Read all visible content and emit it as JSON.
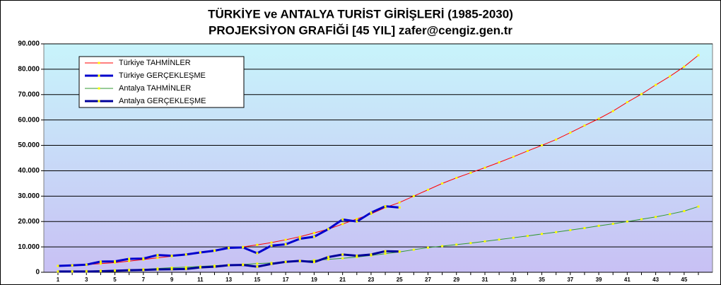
{
  "chart_data": {
    "type": "line",
    "title": "TÜRKİYE ve ANTALYA TURİST GİRİŞLERİ (1985-2030)",
    "subtitle": "PROJEKSİYON GRAFİĞİ [45 YIL]  zafer@cengiz.gen.tr",
    "categories": [
      1,
      null,
      3,
      null,
      5,
      null,
      7,
      null,
      9,
      null,
      11,
      null,
      13,
      null,
      15,
      null,
      17,
      null,
      19,
      null,
      21,
      null,
      23,
      null,
      25,
      null,
      27,
      null,
      29,
      null,
      31,
      null,
      33,
      null,
      35,
      null,
      37,
      null,
      39,
      null,
      41,
      null,
      43,
      null,
      45,
      null
    ],
    "ylim": [
      0,
      90000
    ],
    "yticks": [
      0,
      {
        "value": 10000,
        "label": "10.000"
      },
      {
        "value": 20000,
        "label": "20.000"
      },
      {
        "value": 30000,
        "label": "30.000"
      },
      {
        "value": 40000,
        "label": "40.000"
      },
      {
        "value": 50000,
        "label": "50.000"
      },
      {
        "value": 60000,
        "label": "60.000"
      },
      {
        "value": 70000,
        "label": "70.000"
      },
      {
        "value": 80000,
        "label": "80.000"
      },
      {
        "value": 90000,
        "label": "90.000"
      }
    ],
    "grid": true,
    "legend": "top-left",
    "series": [
      {
        "name": "Türkiye TAHMİNLER",
        "color": "#ff0000",
        "width": 1,
        "values": [
          2500,
          2700,
          3000,
          3400,
          3800,
          4400,
          5000,
          5700,
          6300,
          7000,
          7800,
          8600,
          9500,
          10000,
          10800,
          11700,
          12800,
          14000,
          15500,
          17000,
          19000,
          21000,
          23000,
          25500,
          27500,
          30000,
          32500,
          35000,
          37200,
          39200,
          41200,
          43300,
          45500,
          47800,
          50000,
          52300,
          55000,
          57800,
          60500,
          63500,
          67000,
          70200,
          73800,
          77200,
          81000,
          85500
        ]
      },
      {
        "name": "Türkiye GERÇEKLEŞME",
        "color": "#0000cc",
        "width": 3,
        "values": [
          2500,
          2700,
          3000,
          4200,
          4300,
          5300,
          5400,
          6800,
          6500,
          7000,
          7800,
          8500,
          9600,
          9800,
          7500,
          10500,
          11000,
          13200,
          14000,
          17000,
          20800,
          20000,
          23500,
          26000,
          25500,
          null,
          null,
          null,
          null,
          null,
          null,
          null,
          null,
          null,
          null,
          null,
          null,
          null,
          null,
          null,
          null,
          null,
          null,
          null,
          null,
          null
        ]
      },
      {
        "name": "Antalya TAHMİNLER",
        "color": "#339933",
        "width": 1,
        "values": [
          300,
          400,
          500,
          650,
          800,
          1000,
          1200,
          1500,
          1800,
          2000,
          2300,
          2600,
          2900,
          3100,
          3400,
          3700,
          4000,
          4300,
          4700,
          5100,
          5500,
          6000,
          6600,
          7300,
          8000,
          8900,
          9700,
          10300,
          10900,
          11500,
          12200,
          12900,
          13600,
          14300,
          15100,
          15800,
          16600,
          17400,
          18300,
          19100,
          20000,
          20900,
          21800,
          22900,
          24100,
          25900
        ]
      },
      {
        "name": "Antalya GERÇEKLEŞME",
        "color": "#000099",
        "width": 3,
        "values": [
          300,
          300,
          300,
          400,
          600,
          800,
          900,
          1100,
          1200,
          1300,
          1900,
          2200,
          2800,
          2900,
          2200,
          3300,
          4100,
          4500,
          4000,
          6000,
          7000,
          6500,
          7000,
          8300,
          8200,
          null,
          null,
          null,
          null,
          null,
          null,
          null,
          null,
          null,
          null,
          null,
          null,
          null,
          null,
          null,
          null,
          null,
          null,
          null,
          null,
          null
        ]
      }
    ]
  }
}
